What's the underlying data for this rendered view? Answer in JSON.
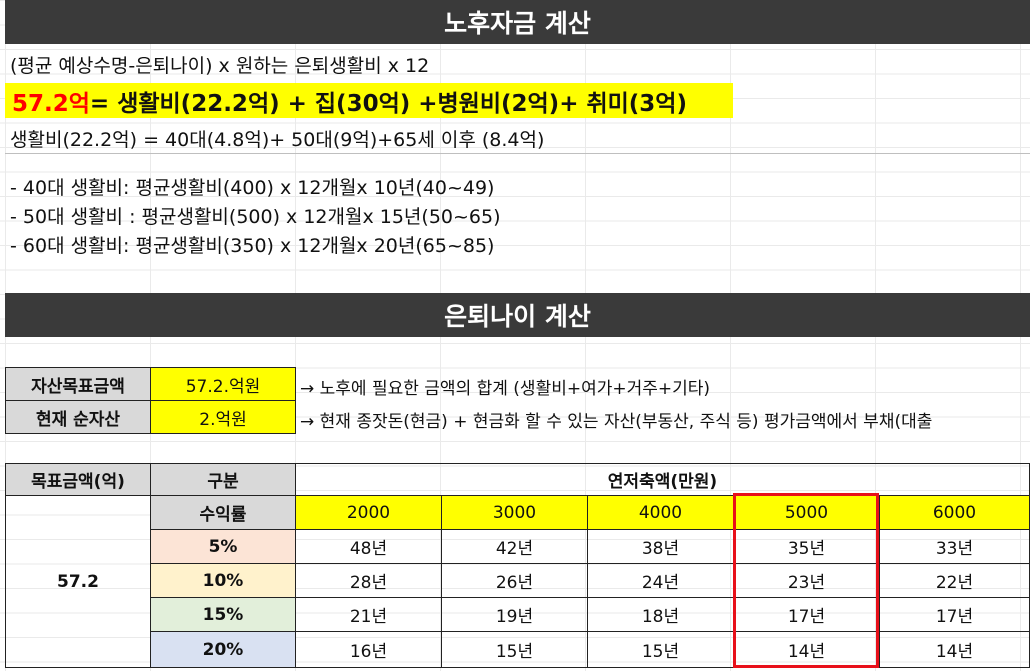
{
  "title1": "노후자금 계산",
  "formula_line": "(평균 예상수명-은퇴나이) x 원하는 은퇴생활비 x 12",
  "highlight": {
    "total": "57.2억",
    "rest": "= 생활비(22.2억) + 집(30억) +병원비(2억)+ 취미(3억)"
  },
  "living_breakdown": "생활비(22.2억) = 40대(4.8억)+ 50대(9억)+65세 이후 (8.4억)",
  "details": [
    "- 40대 생활비: 평균생활비(400) x 12개월x 10년(40~49)",
    "- 50대 생활비 : 평균생활비(500) x 12개월x 15년(50~65)",
    "- 60대 생활비:  평균생활비(350) x 12개월x 20년(65~85)"
  ],
  "title2": "은퇴나이 계산",
  "info": [
    {
      "label": "자산목표금액",
      "value": "57.2.억원",
      "desc": "→ 노후에 필요한 금액의 합계 (생활비+여가+거주+기타)"
    },
    {
      "label": "현재 순자산",
      "value": "2.억원",
      "desc": "→ 현재 종잣돈(현금) + 현금화 할 수 있는 자산(부동산, 주식 등) 평가금액에서 부채(대출"
    }
  ],
  "table": {
    "col_target": "목표금액(억)",
    "col_type": "구분",
    "col_savings": "연저축액(만원)",
    "rate_label": "수익률",
    "target_value": "57.2",
    "savings": [
      "2000",
      "3000",
      "4000",
      "5000",
      "6000"
    ],
    "rows": [
      {
        "rate": "5%",
        "color": "#fce4d6",
        "values": [
          "48년",
          "42년",
          "38년",
          "35년",
          "33년"
        ]
      },
      {
        "rate": "10%",
        "color": "#fff2cc",
        "values": [
          "28년",
          "26년",
          "24년",
          "23년",
          "22년"
        ]
      },
      {
        "rate": "15%",
        "color": "#e2efda",
        "values": [
          "21년",
          "19년",
          "18년",
          "17년",
          "17년"
        ]
      },
      {
        "rate": "20%",
        "color": "#d9e1f2",
        "values": [
          "16년",
          "15년",
          "15년",
          "14년",
          "14년"
        ]
      }
    ],
    "highlight_color": "#e8101a"
  }
}
